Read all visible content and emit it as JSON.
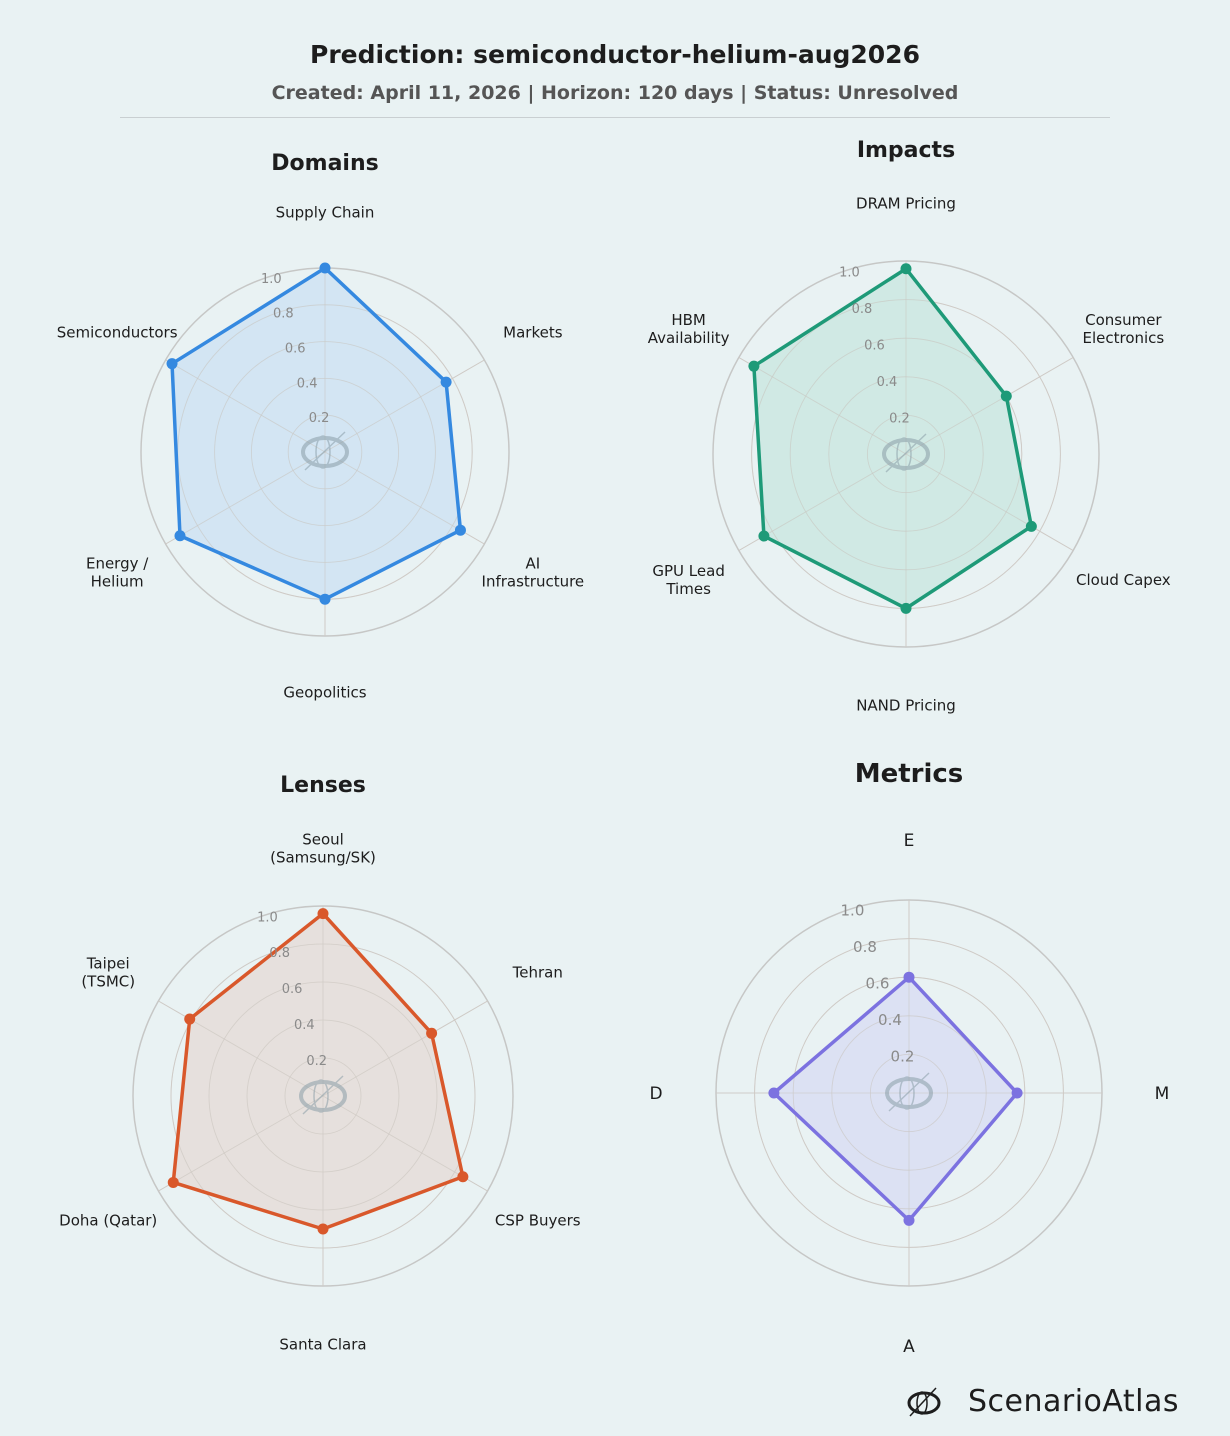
{
  "header": {
    "title": "Prediction: semiconductor-helium-aug2026",
    "subtitle": "Created: April 11, 2026  |  Horizon: 120 days  |  Status: Unresolved"
  },
  "brand": {
    "name": "ScenarioAtlas"
  },
  "chart_data": [
    {
      "type": "radar",
      "title": "Domains",
      "color": "#3589e0",
      "fill": "#cfe3f2",
      "rlim": [
        0,
        1
      ],
      "rticks": [
        "0.2",
        "0.4",
        "0.6",
        "0.8",
        "1.0"
      ],
      "categories": [
        "Supply Chain",
        "Markets",
        "AI\nInfrastructure",
        "Geopolitics",
        "Energy /\nHelium",
        "Semiconductors"
      ],
      "values": [
        1.0,
        0.76,
        0.85,
        0.8,
        0.91,
        0.96
      ]
    },
    {
      "type": "radar",
      "title": "Impacts",
      "color": "#1e9a78",
      "fill": "#cbe7e1",
      "rlim": [
        0,
        1
      ],
      "rticks": [
        "0.2",
        "0.4",
        "0.6",
        "0.8",
        "1.0"
      ],
      "categories": [
        "DRAM Pricing",
        "Consumer\nElectronics",
        "Cloud Capex",
        "NAND Pricing",
        "GPU Lead\nTimes",
        "HBM\nAvailability"
      ],
      "values": [
        0.96,
        0.6,
        0.75,
        0.8,
        0.85,
        0.91
      ]
    },
    {
      "type": "radar",
      "title": "Lenses",
      "color": "#d9582b",
      "fill": "#e5ddd8",
      "rlim": [
        0,
        1
      ],
      "rticks": [
        "0.2",
        "0.4",
        "0.6",
        "0.8",
        "1.0"
      ],
      "categories": [
        "Seoul\n(Samsung/SK)",
        "Tehran",
        "CSP Buyers",
        "Santa Clara",
        "Doha (Qatar)",
        "Taipei\n(TSMC)"
      ],
      "values": [
        0.96,
        0.66,
        0.85,
        0.7,
        0.91,
        0.81
      ]
    },
    {
      "type": "radar",
      "title": "Metrics",
      "color": "#7c72e0",
      "fill": "#d9def2",
      "rlim": [
        0,
        1
      ],
      "rticks": [
        "0.2",
        "0.4",
        "0.6",
        "0.8",
        "1.0"
      ],
      "categories": [
        "E",
        "M",
        "A",
        "D"
      ],
      "values": [
        0.6,
        0.56,
        0.66,
        0.7
      ]
    }
  ]
}
